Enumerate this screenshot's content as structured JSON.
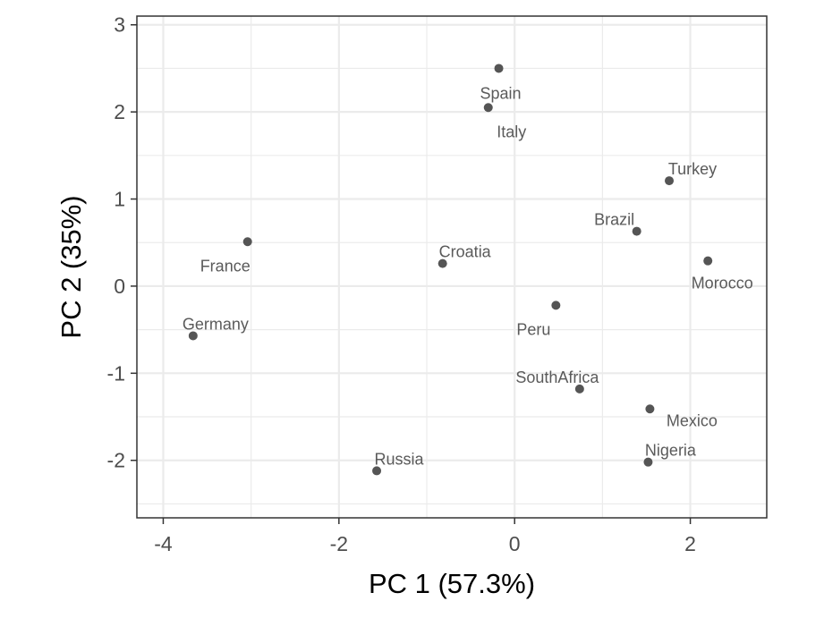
{
  "chart_data": {
    "type": "scatter",
    "title": "",
    "xlabel": "PC 1 (57.3%)",
    "ylabel": "PC 2 (35%)",
    "xlim": [
      -4.3,
      2.87
    ],
    "ylim": [
      -2.66,
      3.1
    ],
    "xticks": [
      -4,
      -2,
      0,
      2
    ],
    "yticks": [
      -2,
      -1,
      0,
      1,
      2,
      3
    ],
    "grid": true,
    "legend": "none",
    "colors": {
      "point": "#555555",
      "label": "#5a5a5a",
      "grid": "#ebebeb",
      "border": "#333333"
    },
    "points": [
      {
        "label": "Spain",
        "x": -0.18,
        "y": 2.5
      },
      {
        "label": "Italy",
        "x": -0.3,
        "y": 2.05
      },
      {
        "label": "Turkey",
        "x": 1.76,
        "y": 1.21
      },
      {
        "label": "Brazil",
        "x": 1.39,
        "y": 0.63
      },
      {
        "label": "France",
        "x": -3.04,
        "y": 0.51
      },
      {
        "label": "Croatia",
        "x": -0.82,
        "y": 0.26
      },
      {
        "label": "Morocco",
        "x": 2.2,
        "y": 0.29
      },
      {
        "label": "Peru",
        "x": 0.47,
        "y": -0.22
      },
      {
        "label": "Germany",
        "x": -3.66,
        "y": -0.57
      },
      {
        "label": "SouthAfrica",
        "x": 0.74,
        "y": -1.18
      },
      {
        "label": "Mexico",
        "x": 1.54,
        "y": -1.41
      },
      {
        "label": "Nigeria",
        "x": 1.52,
        "y": -2.02
      },
      {
        "label": "Russia",
        "x": -1.57,
        "y": -2.12
      }
    ]
  }
}
